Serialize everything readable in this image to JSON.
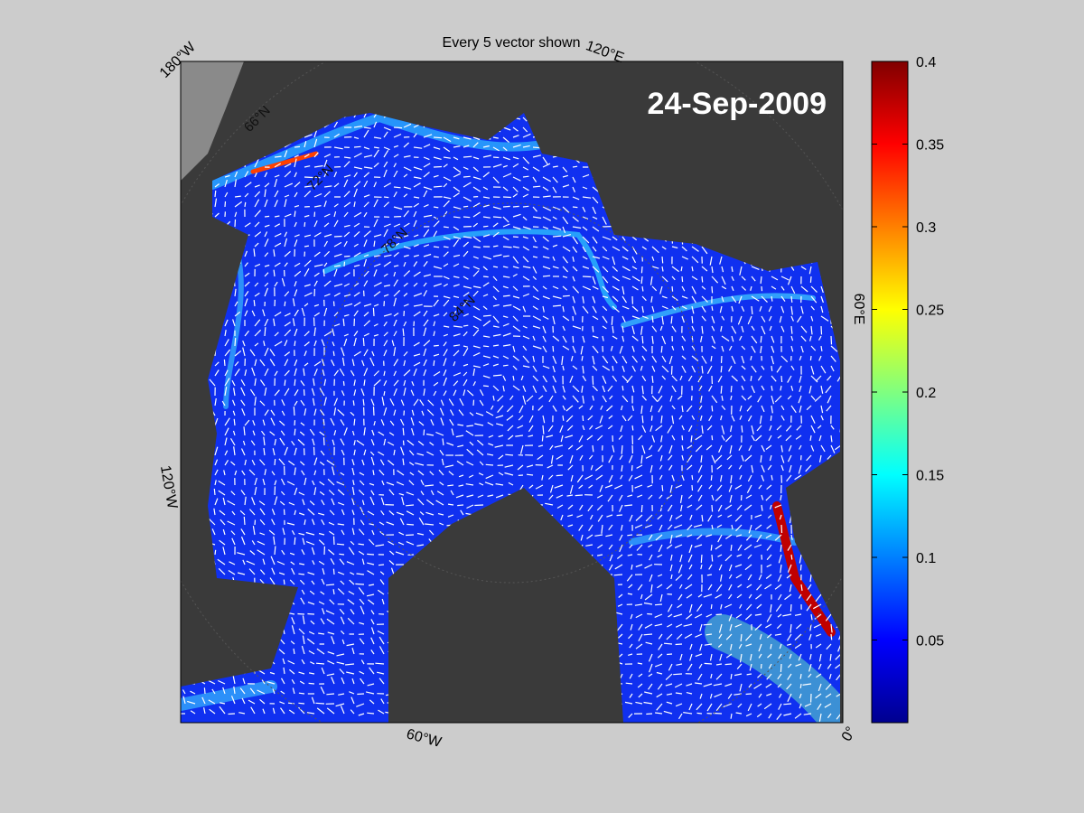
{
  "title": "Every 5 vector shown",
  "date": "24-Sep-2009",
  "lon_labels": [
    "180°W",
    "120°E",
    "60°E",
    "0°",
    "60°W",
    "120°W"
  ],
  "lat_labels": [
    "66°N",
    "72°N",
    "78°N",
    "84°N"
  ],
  "colorbar": {
    "colormap": "jet",
    "lim": [
      0,
      0.4
    ],
    "ticks": [
      0.05,
      0.1,
      0.15,
      0.2,
      0.25,
      0.3,
      0.35,
      0.4
    ]
  }
}
